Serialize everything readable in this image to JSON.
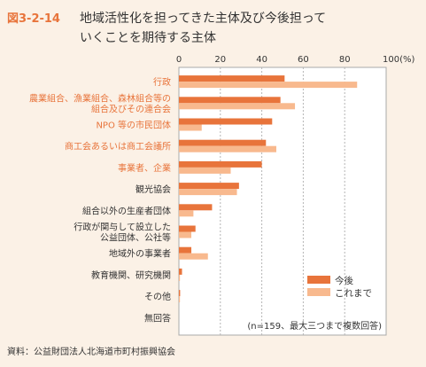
{
  "figure_label": "図3-2-14",
  "title_lines": [
    "地域活性化を担ってきた主体及び今後担って",
    "いくことを期待する主体"
  ],
  "note": "(n=159、最大三つまで複数回答)",
  "source": "資料：公益財団法人北海道市町村振興協会",
  "colors": {
    "future": "#e8743b",
    "past": "#f8b98e",
    "highlight_text": "#e8743b",
    "normal_text": "#333333",
    "panel_bg": "#fbf1e6"
  },
  "chart_data": {
    "type": "bar",
    "orientation": "horizontal",
    "xlim": [
      0,
      100
    ],
    "x_ticks": [
      0,
      20,
      40,
      60,
      80
    ],
    "x_tick_labels": [
      "0",
      "20",
      "40",
      "60",
      "80"
    ],
    "x_unit": "100(%)",
    "categories": [
      {
        "lines": [
          "行政"
        ],
        "highlight": true
      },
      {
        "lines": [
          "農業組合、漁業組合、森林組合等の",
          "組合及びその連合会"
        ],
        "highlight": true
      },
      {
        "lines": [
          "NPO 等の市民団体"
        ],
        "highlight": true
      },
      {
        "lines": [
          "商工会あるいは商工会議所"
        ],
        "highlight": true
      },
      {
        "lines": [
          "事業者、企業"
        ],
        "highlight": true
      },
      {
        "lines": [
          "観光協会"
        ],
        "highlight": false
      },
      {
        "lines": [
          "組合以外の生産者団体"
        ],
        "highlight": false
      },
      {
        "lines": [
          "行政が関与して設立した",
          "公益団体、公社等"
        ],
        "highlight": false
      },
      {
        "lines": [
          "地域外の事業者"
        ],
        "highlight": false
      },
      {
        "lines": [
          "教育機関、研究機関"
        ],
        "highlight": false
      },
      {
        "lines": [
          "その他"
        ],
        "highlight": false
      },
      {
        "lines": [
          "無回答"
        ],
        "highlight": false
      }
    ],
    "series": [
      {
        "name": "今後",
        "values": [
          51,
          49,
          45,
          42,
          40,
          29,
          16,
          8,
          6,
          1.5,
          0.6,
          0
        ]
      },
      {
        "name": "これまで",
        "values": [
          86,
          56,
          11,
          47,
          25,
          28,
          7,
          6,
          14,
          0.5,
          0.5,
          0
        ]
      }
    ],
    "legend_position": "bottom-right",
    "grid": "dashed vertical"
  }
}
